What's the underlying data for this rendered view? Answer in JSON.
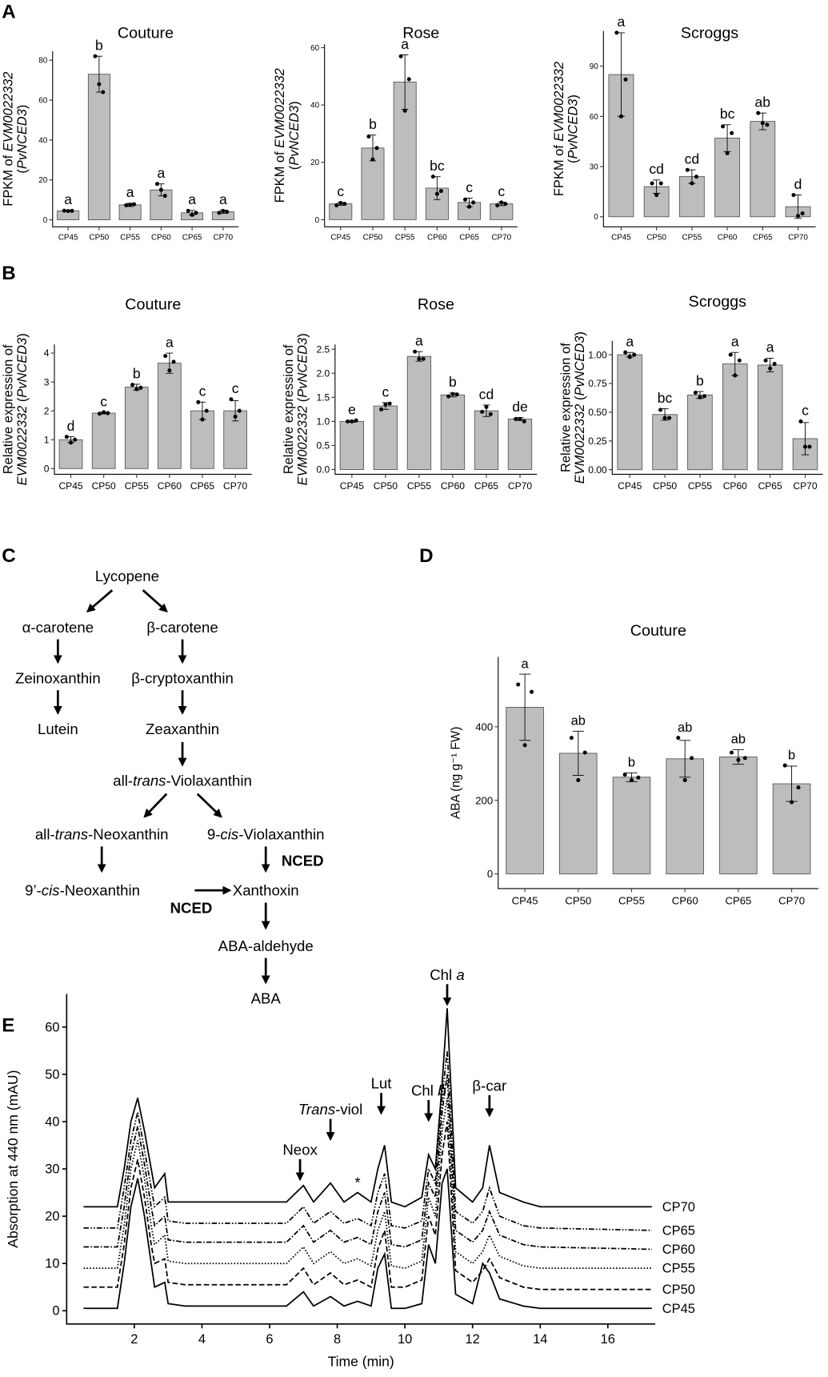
{
  "panel_labels": [
    "A",
    "B",
    "C",
    "D",
    "E"
  ],
  "chart_data": [
    {
      "type": "bar",
      "title": "Couture",
      "categories": [
        "CP45",
        "CP50",
        "CP55",
        "CP60",
        "CP65",
        "CP70"
      ],
      "values": [
        4.5,
        73,
        7.5,
        15,
        3.5,
        4
      ],
      "errors": [
        0.3,
        9,
        0.8,
        3,
        1.2,
        0.8
      ],
      "letters": [
        "a",
        "b",
        "a",
        "a",
        "a",
        "a"
      ],
      "points": [
        [
          4.6,
          4.4,
          4.5
        ],
        [
          82,
          68,
          64
        ],
        [
          7.3,
          7.6,
          7.8
        ],
        [
          18,
          15,
          12
        ],
        [
          4.5,
          2.5,
          3.5
        ],
        [
          3.5,
          4.5,
          4.0
        ]
      ],
      "ylim": [
        -3.5,
        84.5
      ],
      "yticks": [
        0,
        20,
        40,
        60,
        80
      ],
      "color": "#bdbdbd",
      "y_label": [
        [
          {
            "text": "FPKM of "
          },
          {
            "text": "EVM0022332",
            "italic": true
          }
        ],
        [
          {
            "text": "("
          },
          {
            "text": "PvNCED3",
            "italic": true
          },
          {
            "text": ")"
          }
        ]
      ]
    },
    {
      "type": "bar",
      "title": "Rose",
      "categories": [
        "CP45",
        "CP50",
        "CP55",
        "CP60",
        "CP65",
        "CP70"
      ],
      "values": [
        5.5,
        25,
        48,
        11,
        6,
        5.5
      ],
      "errors": [
        0.5,
        4.5,
        9.5,
        4,
        1.5,
        0.6
      ],
      "letters": [
        "c",
        "b",
        "a",
        "bc",
        "c",
        "c"
      ],
      "points": [
        [
          5,
          5.8,
          5.5
        ],
        [
          29,
          21,
          25
        ],
        [
          57,
          38,
          49
        ],
        [
          15,
          9,
          10
        ],
        [
          7,
          4.5,
          6
        ],
        [
          5,
          6,
          5.5
        ]
      ],
      "ylim": [
        -2.5,
        61.2
      ],
      "yticks": [
        0,
        20,
        40,
        60
      ],
      "color": "#bdbdbd",
      "y_label": [
        [
          {
            "text": "FPKM of "
          },
          {
            "text": "EVM0022332",
            "italic": true
          }
        ],
        [
          {
            "text": "("
          },
          {
            "text": "PvNCED3",
            "italic": true
          },
          {
            "text": ")"
          }
        ]
      ]
    },
    {
      "type": "bar",
      "title": "Scroggs",
      "categories": [
        "CP45",
        "CP50",
        "CP55",
        "CP60",
        "CP65",
        "CP70"
      ],
      "values": [
        85,
        18,
        24,
        47,
        57,
        6
      ],
      "errors": [
        25,
        4,
        4,
        8,
        5,
        7
      ],
      "letters": [
        "a",
        "cd",
        "cd",
        "bc",
        "ab",
        "d"
      ],
      "points": [
        [
          110,
          60,
          82
        ],
        [
          20,
          13,
          20
        ],
        [
          28,
          20,
          24
        ],
        [
          54,
          38,
          50
        ],
        [
          62,
          56,
          55
        ],
        [
          13,
          0.5,
          2
        ]
      ],
      "ylim": [
        -6,
        111
      ],
      "yticks": [
        0,
        30,
        60,
        90
      ],
      "color": "#bdbdbd",
      "y_label": [
        [
          {
            "text": "FPKM of "
          },
          {
            "text": "EVM0022332",
            "italic": true
          }
        ],
        [
          {
            "text": "("
          },
          {
            "text": "PvNCED3",
            "italic": true
          },
          {
            "text": ")"
          }
        ]
      ]
    },
    {
      "type": "bar",
      "title": "Couture",
      "categories": [
        "CP45",
        "CP50",
        "CP55",
        "CP60",
        "CP65",
        "CP70"
      ],
      "values": [
        1.0,
        1.92,
        2.82,
        3.65,
        2.0,
        2.0
      ],
      "errors": [
        0.1,
        0.03,
        0.1,
        0.35,
        0.3,
        0.35
      ],
      "letters": [
        "d",
        "c",
        "b",
        "a",
        "c",
        "c"
      ],
      "points": [
        [
          1.1,
          0.9,
          1.0
        ],
        [
          1.9,
          1.95,
          1.92
        ],
        [
          2.9,
          2.75,
          2.8
        ],
        [
          3.9,
          3.4,
          3.7
        ],
        [
          2.3,
          1.7,
          2.0
        ],
        [
          2.4,
          1.8,
          2.0
        ]
      ],
      "ylim": [
        -0.2,
        4.3
      ],
      "yticks": [
        0,
        1,
        2,
        3,
        4
      ],
      "color": "#bdbdbd",
      "y_label": [
        [
          {
            "text": "Relative expression of"
          }
        ],
        [
          {
            "text": "EVM0022332",
            "italic": true
          },
          {
            "text": " ("
          },
          {
            "text": "PvNCED3",
            "italic": true
          },
          {
            "text": ")"
          }
        ]
      ]
    },
    {
      "type": "bar",
      "title": "Rose",
      "categories": [
        "CP45",
        "CP50",
        "CP55",
        "CP60",
        "CP65",
        "CP70"
      ],
      "values": [
        1.0,
        1.32,
        2.35,
        1.55,
        1.22,
        1.05
      ],
      "errors": [
        0.02,
        0.07,
        0.1,
        0.04,
        0.12,
        0.03
      ],
      "letters": [
        "e",
        "c",
        "a",
        "b",
        "cd",
        "de"
      ],
      "points": [
        [
          1.0,
          1.0,
          1.02
        ],
        [
          1.25,
          1.35,
          1.37
        ],
        [
          2.45,
          2.3,
          2.3
        ],
        [
          1.52,
          1.57,
          1.56
        ],
        [
          1.2,
          1.3,
          1.15
        ],
        [
          1.05,
          1.05,
          1.0
        ]
      ],
      "ylim": [
        -0.1,
        2.6
      ],
      "yticks": [
        {
          "value": 0,
          "label": "0.0"
        },
        {
          "value": 0.5,
          "label": "0.5"
        },
        {
          "value": 1,
          "label": "1.0"
        },
        {
          "value": 1.5,
          "label": "1.5"
        },
        {
          "value": 2,
          "label": "2.0"
        },
        {
          "value": 2.5,
          "label": "2.5"
        }
      ],
      "color": "#bdbdbd",
      "y_label": [
        [
          {
            "text": "Relative expression of"
          }
        ],
        [
          {
            "text": "EVM0022332",
            "italic": true
          },
          {
            "text": " ("
          },
          {
            "text": "PvNCED3",
            "italic": true
          },
          {
            "text": ")"
          }
        ]
      ]
    },
    {
      "type": "bar",
      "title": "Scroggs",
      "categories": [
        "CP45",
        "CP50",
        "CP55",
        "CP60",
        "CP65",
        "CP70"
      ],
      "values": [
        1.0,
        0.48,
        0.65,
        0.92,
        0.91,
        0.27
      ],
      "errors": [
        0.02,
        0.05,
        0.03,
        0.1,
        0.06,
        0.14
      ],
      "letters": [
        "a",
        "bc",
        "b",
        "a",
        "a",
        "c"
      ],
      "points": [
        [
          1.02,
          0.98,
          1.0
        ],
        [
          0.52,
          0.45,
          0.45
        ],
        [
          0.67,
          0.63,
          0.64
        ],
        [
          1.0,
          0.82,
          0.95
        ],
        [
          0.95,
          0.88,
          0.92
        ],
        [
          0.42,
          0.2,
          0.2
        ]
      ],
      "ylim": [
        -0.04,
        1.12
      ],
      "yticks": [
        {
          "value": 0,
          "label": "0.00"
        },
        {
          "value": 0.25,
          "label": "0.25"
        },
        {
          "value": 0.5,
          "label": "0.50"
        },
        {
          "value": 0.75,
          "label": "0.75"
        },
        {
          "value": 1,
          "label": "1.00"
        }
      ],
      "color": "#bdbdbd",
      "y_label": [
        [
          {
            "text": "Relative expression of"
          }
        ],
        [
          {
            "text": "EVM0022332",
            "italic": true
          },
          {
            "text": " ("
          },
          {
            "text": "PvNCED3",
            "italic": true
          },
          {
            "text": ")"
          }
        ]
      ]
    },
    {
      "type": "bar",
      "title": "Couture",
      "categories": [
        "CP45",
        "CP50",
        "CP55",
        "CP60",
        "CP65",
        "CP70"
      ],
      "values": [
        453,
        328,
        263,
        313,
        318,
        245
      ],
      "errors": [
        90,
        60,
        12,
        50,
        20,
        48
      ],
      "letters": [
        "a",
        "ab",
        "b",
        "ab",
        "ab",
        "b"
      ],
      "points": [
        [
          515,
          350,
          495
        ],
        [
          370,
          255,
          330
        ],
        [
          270,
          255,
          262
        ],
        [
          370,
          255,
          315
        ],
        [
          330,
          310,
          315
        ],
        [
          295,
          195,
          235
        ]
      ],
      "ylim": [
        -40,
        590
      ],
      "yticks": [
        0,
        200,
        400
      ],
      "color": "#bdbdbd",
      "y_label": [
        [
          {
            "text": "ABA (ng g⁻¹ FW)"
          }
        ]
      ]
    },
    {
      "type": "line",
      "x_label": "Time (min)",
      "y_label": [
        [
          {
            "text": "Absorption at 440 nm (mAU)"
          }
        ]
      ],
      "xlim": [
        0,
        17.4
      ],
      "ylim": [
        -2.8,
        67
      ],
      "xticks": [
        2,
        4,
        6,
        8,
        10,
        12,
        14,
        16
      ],
      "yticks": [
        0,
        10,
        20,
        30,
        40,
        50,
        60
      ],
      "color": "#000000",
      "x": [
        0.5,
        1.5,
        1.7,
        1.9,
        2.1,
        2.3,
        2.5,
        2.6,
        2.9,
        3.0,
        3.5,
        6.5,
        7.0,
        7.3,
        7.8,
        8.2,
        8.6,
        9.0,
        9.2,
        9.4,
        9.6,
        10.0,
        10.5,
        10.7,
        10.9,
        11.1,
        11.25,
        11.5,
        12.0,
        12.3,
        12.5,
        12.8,
        13.5,
        14.0,
        17.3
      ],
      "series": [
        {
          "name": "CP70",
          "dash": "none",
          "values": [
            22,
            22,
            30,
            40,
            45,
            38,
            30,
            26,
            29,
            23,
            23,
            23,
            26.5,
            23,
            27,
            23,
            25,
            23,
            30,
            35,
            23,
            22,
            24,
            33,
            30,
            48,
            64,
            26,
            23,
            26,
            35,
            25,
            23,
            22,
            22
          ]
        },
        {
          "name": "CP65",
          "dash": "6 2 1.5 2 1.5 2",
          "values": [
            17.5,
            17.5,
            26,
            36,
            42,
            34,
            26,
            22,
            24,
            19,
            18.5,
            18.5,
            22,
            18.5,
            21,
            18.5,
            19.5,
            18,
            25,
            29,
            18,
            17.5,
            19,
            30,
            27,
            45,
            55,
            21,
            18.5,
            21,
            26,
            20,
            18,
            17.5,
            17
          ]
        },
        {
          "name": "CP60",
          "dash": "6 2 1.5 2",
          "values": [
            13.5,
            13.5,
            22,
            33,
            39,
            31,
            22,
            18,
            20,
            15,
            14.5,
            14.5,
            18,
            14.5,
            17,
            14.5,
            15.5,
            14,
            21,
            25,
            14,
            13.5,
            15,
            27,
            24,
            42,
            50,
            17,
            14.5,
            17,
            21,
            16,
            14,
            13.5,
            13
          ]
        },
        {
          "name": "CP55",
          "dash": "1.5 2",
          "values": [
            9,
            9,
            18,
            30,
            36,
            28,
            18,
            14,
            16,
            10.5,
            10,
            10,
            13.5,
            10,
            12.5,
            10,
            11,
            9.5,
            17,
            21,
            9.5,
            9,
            10.5,
            24,
            20,
            38,
            45,
            12.5,
            10,
            12.5,
            16,
            11.5,
            9.5,
            9,
            9
          ]
        },
        {
          "name": "CP50",
          "dash": "6 3",
          "values": [
            5,
            5,
            14,
            26,
            32,
            24,
            14,
            10,
            11,
            6,
            5.5,
            5.5,
            9,
            5.5,
            8,
            5.5,
            6.5,
            5,
            13,
            17,
            5,
            5,
            6.5,
            20,
            16,
            33,
            40,
            8.5,
            6,
            8.5,
            11,
            7,
            5,
            4.5,
            4.5
          ]
        },
        {
          "name": "CP45",
          "dash": "none",
          "values": [
            0.5,
            0.5,
            10,
            22,
            28,
            20,
            10,
            5,
            6,
            1.5,
            1,
            1,
            4,
            1,
            3,
            1,
            2,
            1,
            9,
            12,
            0.5,
            0.5,
            1.5,
            14,
            10,
            27,
            30,
            3.5,
            1.5,
            10,
            8,
            2.5,
            1,
            0.5,
            0.5
          ]
        }
      ],
      "annotations": [
        {
          "label": [
            {
              "text": "Neox"
            }
          ],
          "x": 6.9,
          "y": 33,
          "arrow": true
        },
        {
          "label": [
            {
              "text": "Trans",
              "italic": true
            },
            {
              "text": "-viol"
            }
          ],
          "x": 7.8,
          "y": 41.5,
          "arrow": true
        },
        {
          "label": [
            {
              "text": "*"
            }
          ],
          "x": 8.6,
          "y": 26,
          "arrow": false
        },
        {
          "label": [
            {
              "text": "Lut"
            }
          ],
          "x": 9.3,
          "y": 47,
          "arrow": true
        },
        {
          "label": [
            {
              "text": "Chl "
            },
            {
              "text": "b",
              "italic": true
            }
          ],
          "x": 10.7,
          "y": 45.5,
          "arrow": true
        },
        {
          "label": [
            {
              "text": "Chl "
            },
            {
              "text": "a",
              "italic": true
            }
          ],
          "x": 11.25,
          "y": 70,
          "arrow": true
        },
        {
          "label": [
            {
              "text": "β-car"
            }
          ],
          "x": 12.5,
          "y": 46.5,
          "arrow": true
        }
      ]
    }
  ],
  "pathway": {
    "nodes": [
      [
        {
          "text": "Lycopene"
        }
      ],
      [
        {
          "text": "α-carotene"
        }
      ],
      [
        {
          "text": "β-carotene"
        }
      ],
      [
        {
          "text": "Zeinoxanthin"
        }
      ],
      [
        {
          "text": "β-cryptoxanthin"
        }
      ],
      [
        {
          "text": "Lutein"
        }
      ],
      [
        {
          "text": "Zeaxanthin"
        }
      ],
      [
        {
          "text": "all-"
        },
        {
          "text": "trans",
          "italic": true
        },
        {
          "text": "-Violaxanthin"
        }
      ],
      [
        {
          "text": "all-"
        },
        {
          "text": "trans",
          "italic": true
        },
        {
          "text": "-Neoxanthin"
        }
      ],
      [
        {
          "text": "9-"
        },
        {
          "text": "cis",
          "italic": true
        },
        {
          "text": "-Violaxanthin"
        }
      ],
      [
        {
          "text": "9’-"
        },
        {
          "text": "cis",
          "italic": true
        },
        {
          "text": "-Neoxanthin"
        }
      ],
      [
        {
          "text": "Xanthoxin"
        }
      ],
      [
        {
          "text": "ABA-aldehyde"
        }
      ],
      [
        {
          "text": "ABA"
        }
      ]
    ],
    "enzymes": [
      "NCED",
      "NCED"
    ]
  }
}
